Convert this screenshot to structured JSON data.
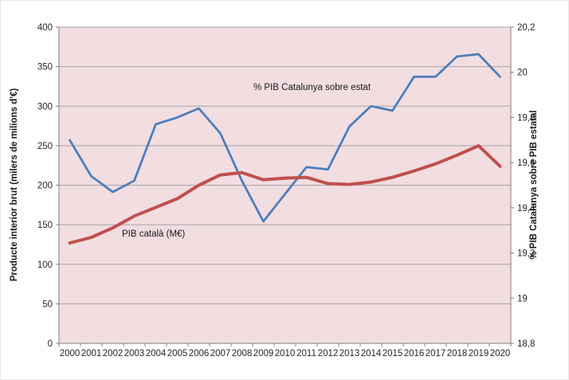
{
  "chart_data": {
    "type": "line",
    "title": "",
    "x_labels": [
      "2000",
      "2001",
      "2002",
      "2003",
      "2004",
      "2005",
      "2006",
      "2007",
      "2008",
      "2009",
      "2010",
      "2011",
      "2012",
      "2013",
      "2014",
      "2015",
      "2016",
      "2017",
      "2018",
      "2019",
      "2020"
    ],
    "left_axis": {
      "label": "Producte interior brut (milers de milions d'€)",
      "min": 0,
      "max": 400,
      "step": 50,
      "ticks": [
        "0",
        "50",
        "100",
        "150",
        "200",
        "250",
        "300",
        "350",
        "400"
      ]
    },
    "right_axis": {
      "label": "% PIB Catalunya sobre PIB estatal",
      "min": 18.8,
      "max": 20.2,
      "step": 0.2,
      "ticks": [
        "18,8",
        "19",
        "19,2",
        "19,4",
        "19,6",
        "19,8",
        "20",
        "20,2"
      ]
    },
    "series": [
      {
        "name": "PIB català (M€)",
        "axis": "left",
        "color": "#c0504d",
        "values": [
          127,
          134,
          146,
          161,
          172,
          183,
          200,
          213,
          216,
          207,
          209,
          210,
          202,
          201,
          204,
          210,
          218,
          227,
          238,
          250,
          224
        ]
      },
      {
        "name": "% PIB Catalunya sobre estat",
        "axis": "right",
        "color": "#4a7ebb",
        "values": [
          19.7,
          19.54,
          19.47,
          19.52,
          19.77,
          19.8,
          19.84,
          19.73,
          19.52,
          19.34,
          19.46,
          19.58,
          19.57,
          19.76,
          19.85,
          19.83,
          19.98,
          19.98,
          20.07,
          20.08,
          19.98
        ]
      }
    ],
    "grid": "horizontal",
    "legend_position": "inline-annotations",
    "plot_bg": "#f2dde1",
    "gridline_color": "#a6a6a6",
    "axis_color": "#808080"
  }
}
